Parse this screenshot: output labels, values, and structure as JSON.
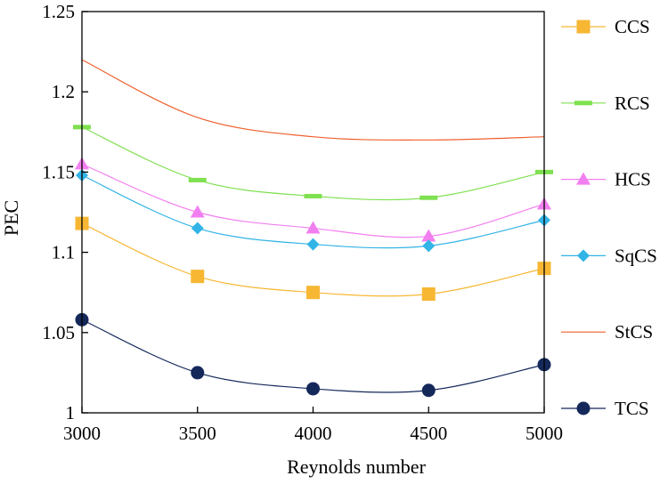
{
  "chart_data": {
    "type": "line",
    "title": "",
    "xlabel": "Reynolds number",
    "ylabel": "PEC",
    "xlim": [
      3000,
      5000
    ],
    "ylim": [
      1,
      1.25
    ],
    "x": [
      3000,
      3500,
      4000,
      4500,
      5000
    ],
    "x_tick_labels": [
      "3000",
      "3500",
      "4000",
      "4500",
      "5000"
    ],
    "y_ticks": [
      1,
      1.05,
      1.1,
      1.15,
      1.2,
      1.25
    ],
    "y_tick_labels": [
      "1",
      "1.05",
      "1.1",
      "1.15",
      "1.2",
      "1.25"
    ],
    "grid": false,
    "legend_position": "right",
    "series": [
      {
        "name": "CCS",
        "values": [
          1.118,
          1.085,
          1.075,
          1.074,
          1.09
        ],
        "color": "#F7B733",
        "marker": "square"
      },
      {
        "name": "RCS",
        "values": [
          1.178,
          1.145,
          1.135,
          1.134,
          1.15
        ],
        "color": "#7FE050",
        "marker": "dash"
      },
      {
        "name": "HCS",
        "values": [
          1.155,
          1.125,
          1.115,
          1.11,
          1.13
        ],
        "color": "#F27FF0",
        "marker": "triangle"
      },
      {
        "name": "SqCS",
        "values": [
          1.148,
          1.115,
          1.105,
          1.104,
          1.12
        ],
        "color": "#33B4E6",
        "marker": "diamond"
      },
      {
        "name": "StCS",
        "values": [
          1.22,
          1.184,
          1.172,
          1.17,
          1.172
        ],
        "color": "#F0602E",
        "marker": "none"
      },
      {
        "name": "TCS",
        "values": [
          1.058,
          1.025,
          1.015,
          1.014,
          1.03
        ],
        "color": "#14285A",
        "marker": "circle"
      }
    ]
  }
}
